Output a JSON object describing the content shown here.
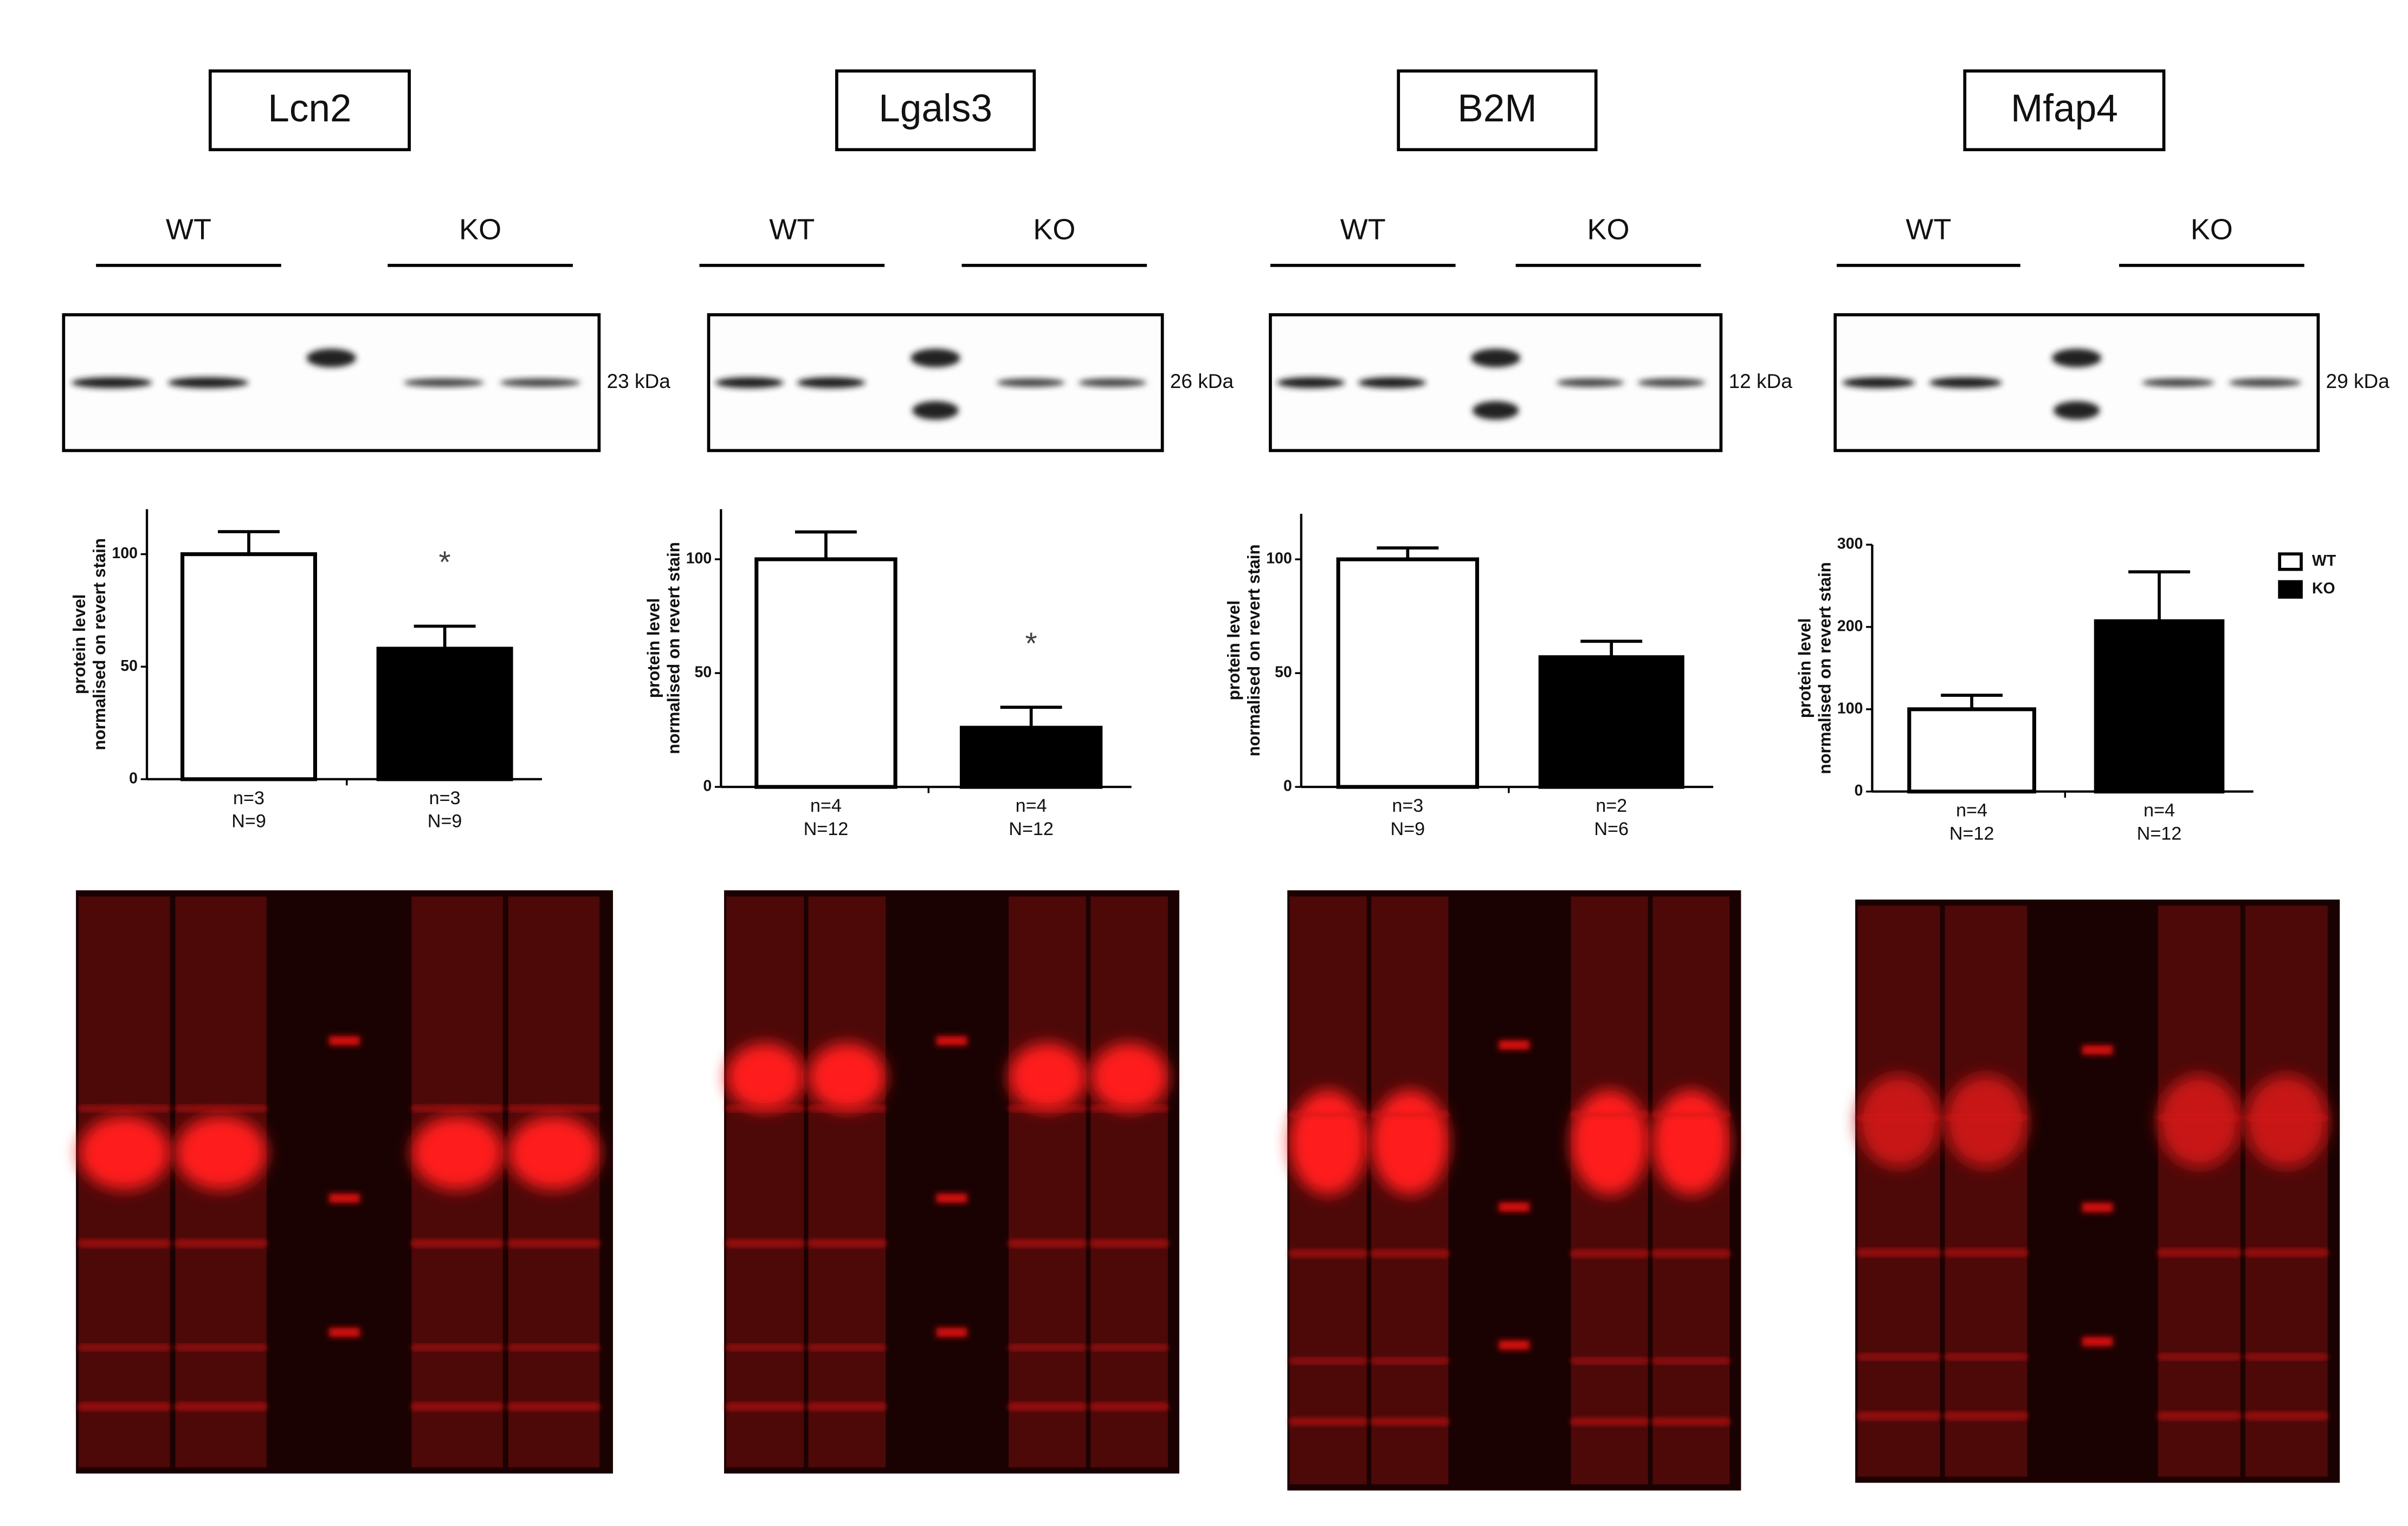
{
  "chart_data": [
    {
      "type": "bar",
      "title": "Lcn2",
      "group_labels": [
        "WT",
        "KO"
      ],
      "kda_label": "23 kDa",
      "ylabel": [
        "protein level",
        "normalised on revert stain"
      ],
      "categories": [
        "n=3",
        "n=3"
      ],
      "sublabels": [
        "N=9",
        "N=9"
      ],
      "values": [
        100,
        58
      ],
      "errors": [
        10,
        10
      ],
      "colors": [
        "#ffffff",
        "#000000"
      ],
      "significance": [
        null,
        "*"
      ],
      "ylim": [
        0,
        120
      ],
      "yticks": [
        0,
        50,
        100
      ]
    },
    {
      "type": "bar",
      "title": "Lgals3",
      "group_labels": [
        "WT",
        "KO"
      ],
      "kda_label": "26 kDa",
      "ylabel": [
        "protein level",
        "normalised on revert stain"
      ],
      "categories": [
        "n=4",
        "n=4"
      ],
      "sublabels": [
        "N=12",
        "N=12"
      ],
      "values": [
        100,
        26
      ],
      "errors": [
        12,
        9
      ],
      "colors": [
        "#ffffff",
        "#000000"
      ],
      "significance": [
        null,
        "*"
      ],
      "ylim": [
        0,
        122
      ],
      "yticks": [
        0,
        50,
        100
      ]
    },
    {
      "type": "bar",
      "title": "B2M",
      "group_labels": [
        "WT",
        "KO"
      ],
      "kda_label": "12 kDa",
      "ylabel": [
        "protein level",
        "normalised on revert stain"
      ],
      "categories": [
        "n=3",
        "n=2"
      ],
      "sublabels": [
        "N=9",
        "N=6"
      ],
      "values": [
        100,
        57
      ],
      "errors": [
        5,
        7
      ],
      "colors": [
        "#ffffff",
        "#000000"
      ],
      "ylim": [
        0,
        120
      ],
      "yticks": [
        0,
        50,
        100
      ]
    },
    {
      "type": "bar",
      "title": "Mfap4",
      "group_labels": [
        "WT",
        "KO"
      ],
      "kda_label": "29 kDa",
      "ylabel": [
        "protein level",
        "normalised on revert stain"
      ],
      "categories": [
        "n=4",
        "n=4"
      ],
      "sublabels": [
        "N=12",
        "N=12"
      ],
      "values": [
        100,
        207
      ],
      "errors": [
        17,
        60
      ],
      "colors": [
        "#ffffff",
        "#000000"
      ],
      "legend": [
        "WT",
        "KO"
      ],
      "ylim": [
        0,
        300
      ],
      "yticks": [
        0,
        100,
        200,
        300
      ]
    }
  ]
}
